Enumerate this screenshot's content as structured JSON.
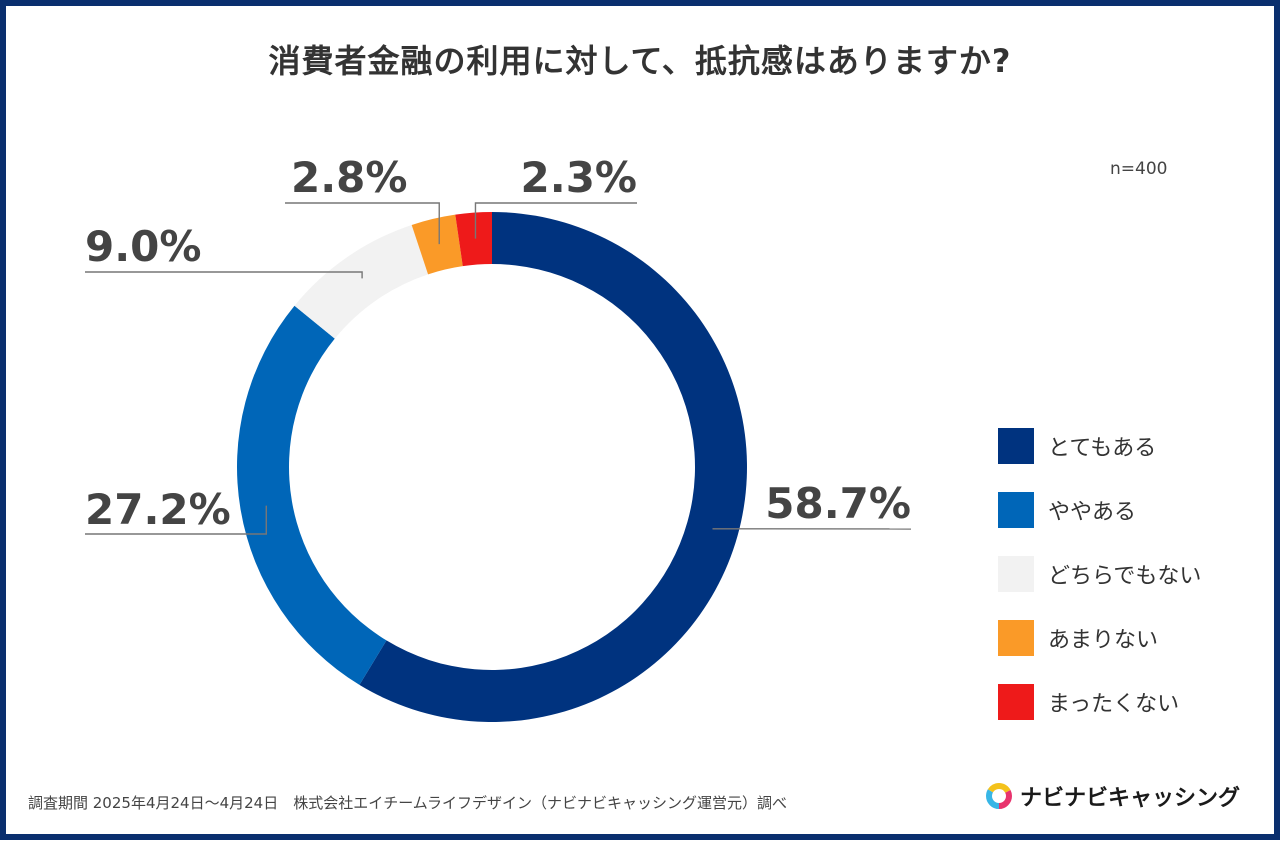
{
  "title": "消費者金融の利用に対して、抵抗感はありますか?",
  "sample_size": "n=400",
  "footer_note": "調査期間 2025年4月24日〜4月24日　株式会社エイチームライフデザイン（ナビナビキャッシング運営元）調べ",
  "brand_name": "ナビナビキャッシング",
  "chart_data": {
    "type": "pie",
    "style": "donut",
    "title": "消費者金融の利用に対して、抵抗感はありますか?",
    "legend_placement": "right",
    "start_angle": "12 o'clock, clockwise",
    "categories": [
      "とてもある",
      "ややある",
      "どちらでもない",
      "あまりない",
      "まったくない"
    ],
    "values": [
      58.7,
      27.2,
      9.0,
      2.8,
      2.3
    ],
    "value_labels": [
      "58.7%",
      "27.2%",
      "9.0%",
      "2.8%",
      "2.3%"
    ],
    "colors": [
      "#00337f",
      "#0066b8",
      "#f2f2f2",
      "#fa9a28",
      "#ee1a1a"
    ]
  }
}
